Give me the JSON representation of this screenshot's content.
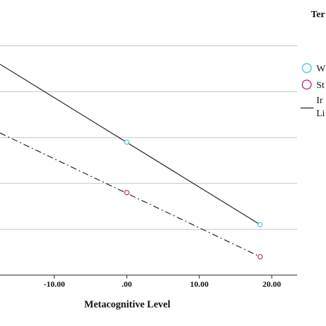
{
  "chart_data": {
    "type": "scatter",
    "xlabel": "Metacognitive Level",
    "x_ticks": [
      "-10.00",
      ".00",
      "10.00",
      "20.00"
    ],
    "x_tick_values": [
      -10,
      0,
      10,
      20
    ],
    "xlim": [
      -17.5,
      23.5
    ],
    "ylim": [
      0,
      6
    ],
    "y_gridlines": [
      1,
      2,
      3,
      4,
      5
    ],
    "grid": "horizontal",
    "legend": {
      "placement": "right",
      "title": "Ter",
      "entries": [
        "W",
        "St",
        "Ir",
        "Li"
      ]
    },
    "series": [
      {
        "marker": "circle",
        "color": "#5bc8de",
        "points": [
          {
            "x": 0,
            "y": 2.9
          },
          {
            "x": 18.4,
            "y": 1.1
          }
        ],
        "line_style": "solid",
        "line_color": "#222222",
        "line": {
          "x": [
            -17.5,
            18.4
          ],
          "y": [
            4.6,
            1.1
          ]
        }
      },
      {
        "marker": "circle",
        "color": "#c0398b",
        "points": [
          {
            "x": 0,
            "y": 1.8
          },
          {
            "x": 18.4,
            "y": 0.4
          }
        ],
        "line_style": "dashdot",
        "line_color": "#222222",
        "line": {
          "x": [
            -17.5,
            18.4
          ],
          "y": [
            3.1,
            0.4
          ]
        }
      }
    ]
  }
}
